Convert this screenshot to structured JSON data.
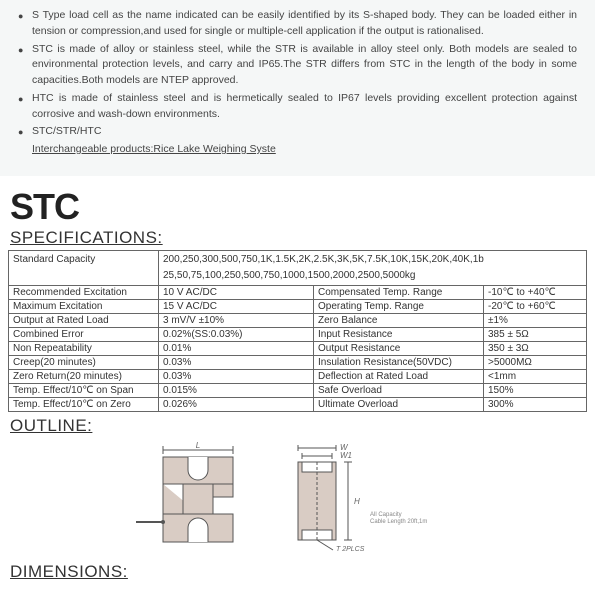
{
  "bullets": [
    "S Type load cell as the name indicated can be easily identified by its S-shaped body. They can be loaded either in tension or compression,and used for single or multiple-cell application if the output is rationalised.",
    "STC is made of alloy or stainless steel, while the STR is available in alloy steel only. Both models are sealed to environmental protection levels, and carry and IP65.The STR differs from STC in the length of the body in some capacities.Both models are NTEP approved.",
    "HTC is made of stainless steel and is hermetically sealed to IP67 levels providing excellent protection against corrosive and wash-down environments.",
    "STC/STR/HTC"
  ],
  "interchange_label": "Interchangeable products:Rice Lake Weighing Syste",
  "title": "STC",
  "headings": {
    "specifications": "SPECIFICATIONS:",
    "outline": "OUTLINE:",
    "dimensions": "DIMENSIONS:"
  },
  "capacity": {
    "label": "Standard Capacity",
    "line1": "200,250,300,500,750,1K,1.5K,2K,2.5K,3K,5K,7.5K,10K,15K,20K,40K,1b",
    "line2": "25,50,75,100,250,500,750,1000,1500,2000,2500,5000kg"
  },
  "rows": [
    {
      "l1": "Recommended Excitation",
      "v1": "10 V AC/DC",
      "l2": "Compensated Temp. Range",
      "v2": "-10℃ to +40℃"
    },
    {
      "l1": "Maximum Excitation",
      "v1": "15 V AC/DC",
      "l2": "Operating Temp. Range",
      "v2": "-20℃ to +60℃"
    },
    {
      "l1": "Output at Rated Load",
      "v1": "3 mV/V ±10%",
      "l2": "Zero Balance",
      "v2": "±1%"
    },
    {
      "l1": "Combined Error",
      "v1": "0.02%(SS:0.03%)",
      "l2": "Input Resistance",
      "v2": "385 ± 5Ω"
    },
    {
      "l1": "Non Repeatability",
      "v1": "0.01%",
      "l2": "Output Resistance",
      "v2": "350 ± 3Ω"
    },
    {
      "l1": "Creep(20 minutes)",
      "v1": "0.03%",
      "l2": "Insulation Resistance(50VDC)",
      "v2": ">5000MΩ"
    },
    {
      "l1": "Zero Return(20 minutes)",
      "v1": "0.03%",
      "l2": "Deflection at Rated Load",
      "v2": "<1mm"
    },
    {
      "l1": "Temp. Effect/10℃ on Span",
      "v1": "0.015%",
      "l2": "Safe Overload",
      "v2": "150%"
    },
    {
      "l1": "Temp. Effect/10℃ on Zero",
      "v1": "0.026%",
      "l2": "Ultimate Overload",
      "v2": "300%"
    }
  ],
  "diagram": {
    "labels": {
      "L": "L",
      "W": "W",
      "W1": "W1",
      "H": "H",
      "T": "T  2PLCS",
      "cable": "All Capacity\nCable Length 20ft,1m"
    },
    "colors": {
      "fill": "#d9ccc4",
      "stroke": "#555",
      "text": "#666"
    }
  }
}
